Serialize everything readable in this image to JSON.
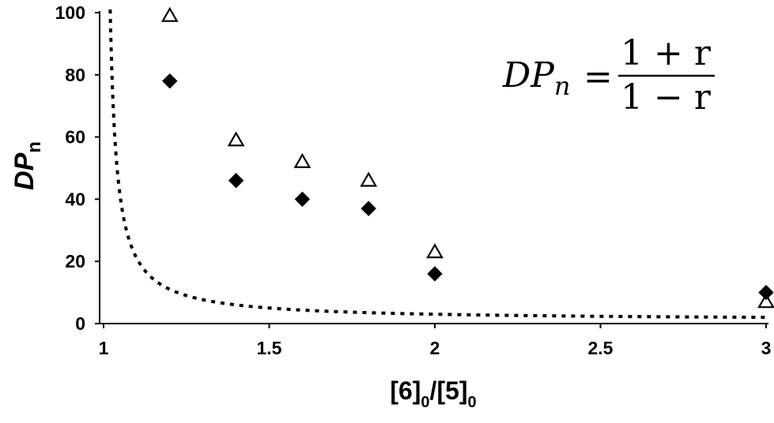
{
  "chart_data": {
    "type": "scatter",
    "xlabel": {
      "main": "[6]",
      "sub1": "0",
      "mid": "/[5]",
      "sub2": "0"
    },
    "ylabel": {
      "main": "DP",
      "sub": "n"
    },
    "xlim": [
      1,
      3
    ],
    "ylim": [
      0,
      100
    ],
    "x_ticks": [
      "1",
      "1.5",
      "2",
      "2.5",
      "3"
    ],
    "y_ticks": [
      "0",
      "20",
      "40",
      "60",
      "80",
      "100"
    ],
    "grid": false,
    "series": [
      {
        "marker": "open-triangle",
        "points": [
          {
            "x": 1.2,
            "y": 99
          },
          {
            "x": 1.4,
            "y": 59
          },
          {
            "x": 1.6,
            "y": 52
          },
          {
            "x": 1.8,
            "y": 46
          },
          {
            "x": 2.0,
            "y": 23
          },
          {
            "x": 3.0,
            "y": 7
          }
        ]
      },
      {
        "marker": "filled-diamond",
        "points": [
          {
            "x": 1.2,
            "y": 78
          },
          {
            "x": 1.4,
            "y": 46
          },
          {
            "x": 1.6,
            "y": 40
          },
          {
            "x": 1.8,
            "y": 37
          },
          {
            "x": 2.0,
            "y": 16
          },
          {
            "x": 3.0,
            "y": 10
          }
        ]
      },
      {
        "line_style": "dotted",
        "formula": "(1+r)/(1-r), r = 1/x",
        "x_start": 1.02,
        "x_end": 3.0
      }
    ],
    "annotation": {
      "lhs": "DP",
      "lhs_sub": "n",
      "equals": "=",
      "numerator": "1 + r",
      "denominator": "1 − r"
    }
  }
}
